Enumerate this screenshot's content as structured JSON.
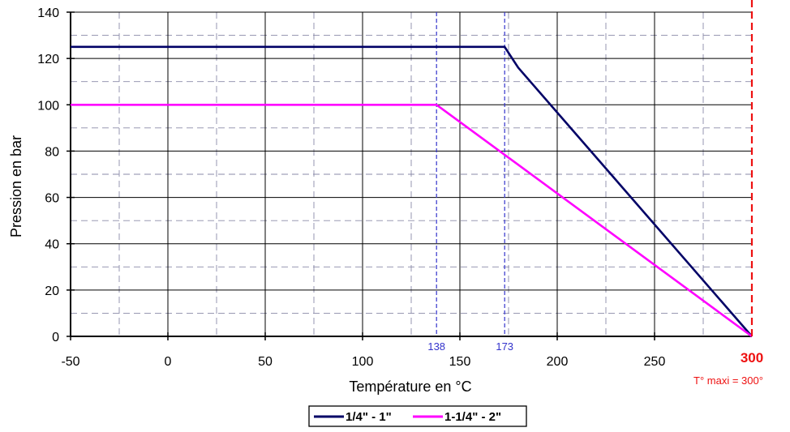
{
  "chart_data": {
    "type": "line",
    "title": "",
    "xlabel": "Température en °C",
    "ylabel": "Pression en bar",
    "xlim": [
      -50,
      300
    ],
    "ylim": [
      0,
      140
    ],
    "x_ticks": [
      -50,
      0,
      50,
      100,
      150,
      200,
      250
    ],
    "y_ticks": [
      0,
      20,
      40,
      60,
      80,
      100,
      120,
      140
    ],
    "grid": {
      "major": true,
      "minor_dashed": true,
      "x_minor": [
        -25,
        25,
        75,
        125,
        175,
        225,
        275
      ],
      "y_minor": [
        10,
        30,
        50,
        70,
        90,
        110,
        130
      ]
    },
    "series": [
      {
        "name": "1/4\" - 1\"",
        "color": "#000066",
        "points": [
          [
            -50,
            125
          ],
          [
            173,
            125
          ],
          [
            180,
            116
          ],
          [
            300,
            0
          ]
        ]
      },
      {
        "name": "1-1/4\" - 2\"",
        "color": "#ff00ff",
        "points": [
          [
            -50,
            100
          ],
          [
            138,
            100
          ],
          [
            300,
            0
          ]
        ]
      }
    ],
    "markers": [
      {
        "x": 138,
        "label": "138",
        "color": "#3333cc"
      },
      {
        "x": 173,
        "label": "173",
        "color": "#3333cc"
      }
    ],
    "max_line": {
      "x": 300,
      "label": "300",
      "note": "T° maxi = 300°",
      "color": "#ee1111"
    },
    "legend_placement": "bottom-center"
  }
}
